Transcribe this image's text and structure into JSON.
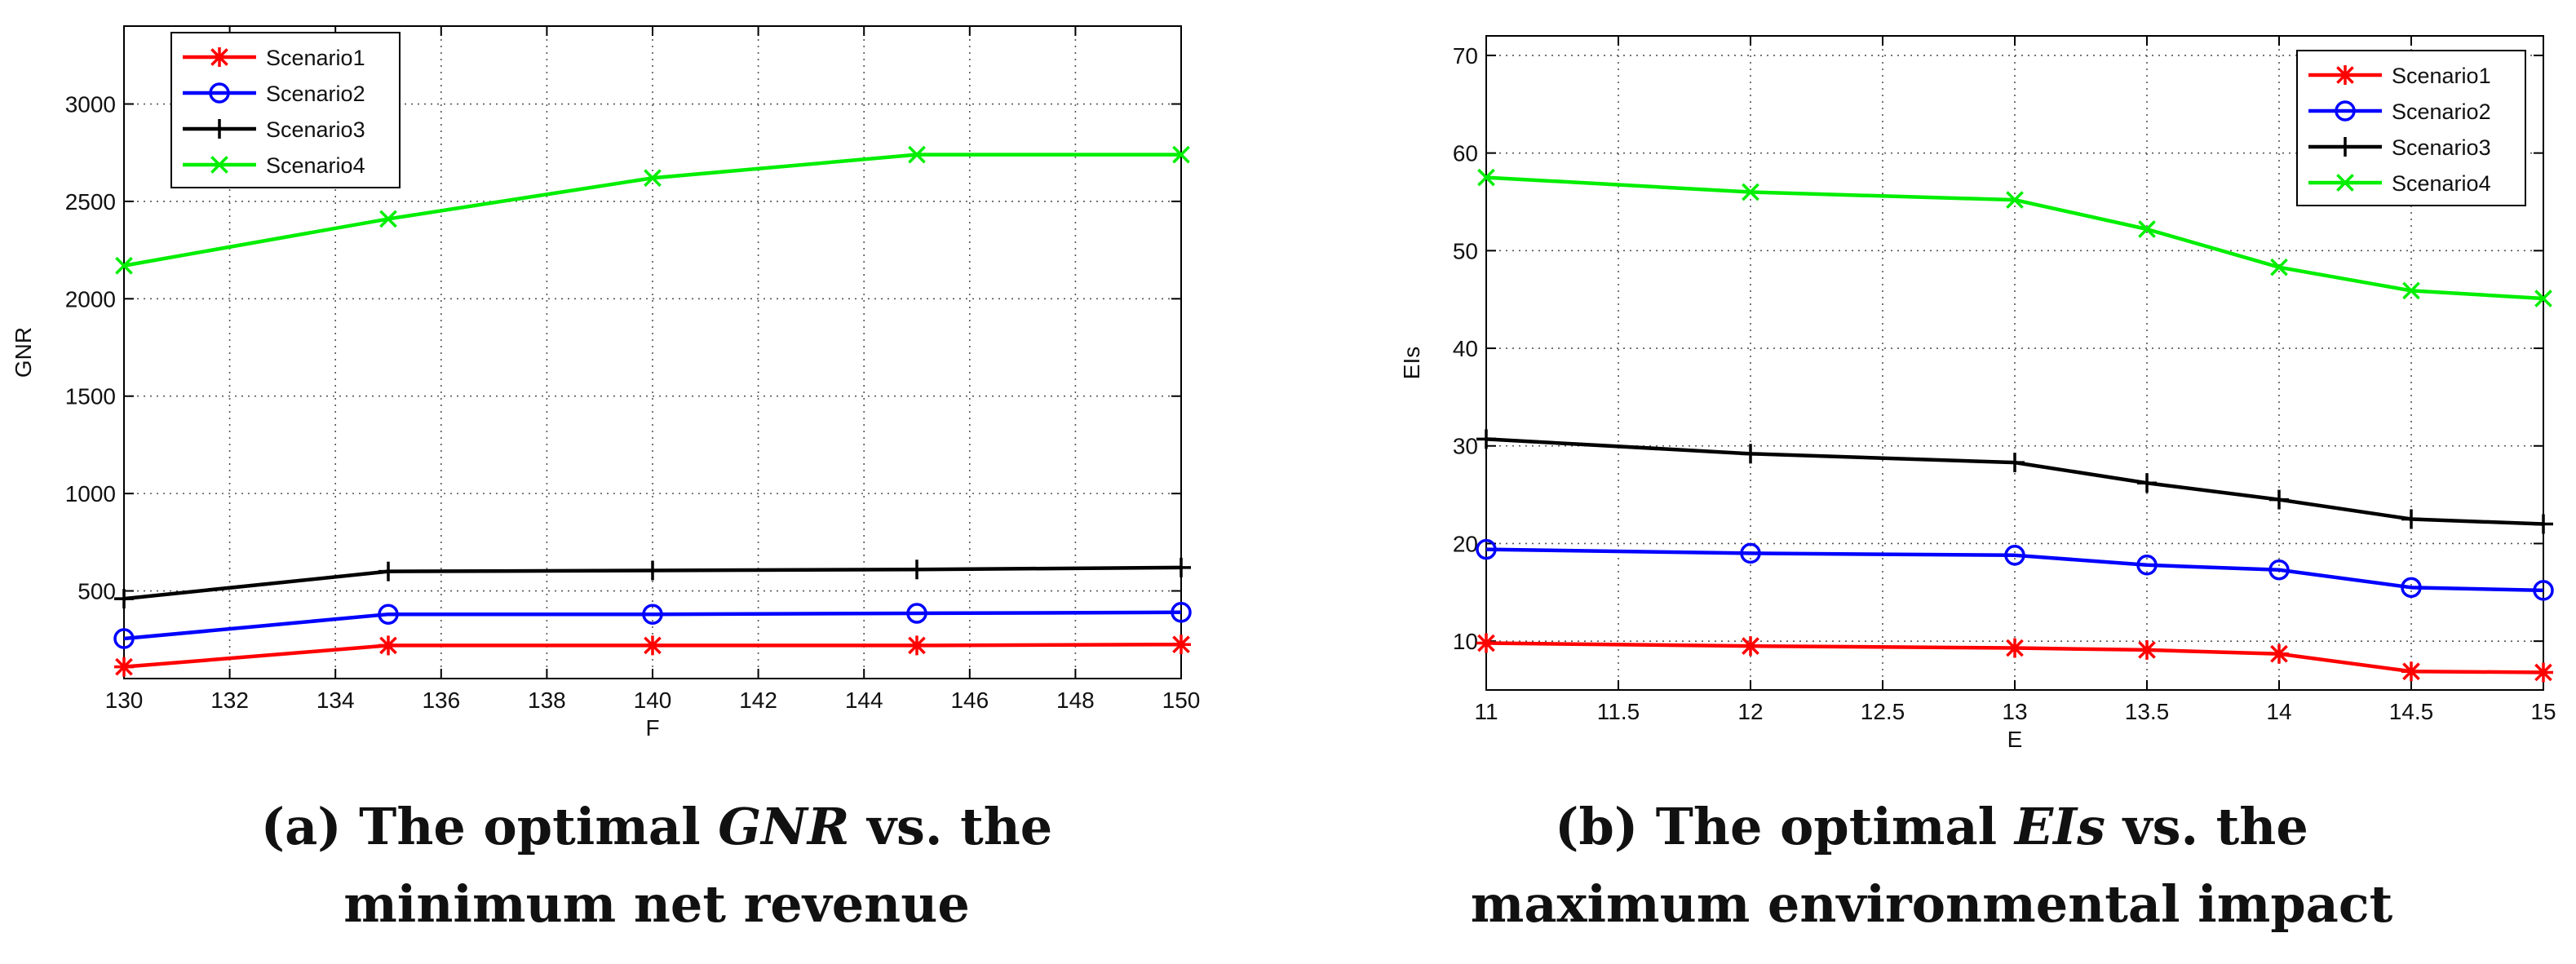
{
  "chart_data": [
    {
      "type": "line",
      "caption": {
        "prefix": "(a) The optimal ",
        "italic": "GNR",
        "suffix": " vs. the",
        "line2": "minimum net revenue"
      },
      "xlabel": "F",
      "ylabel": "GNR",
      "xlim": [
        130,
        150
      ],
      "ylim": [
        50,
        3400
      ],
      "xticks": [
        130,
        132,
        134,
        136,
        138,
        140,
        142,
        144,
        146,
        148,
        150
      ],
      "yticks": [
        500,
        1000,
        1500,
        2000,
        2500,
        3000
      ],
      "grid": true,
      "legend_position": "top-left",
      "x": [
        130,
        135,
        140,
        145,
        150
      ],
      "series": [
        {
          "name": "Scenario1",
          "color": "#ff0000",
          "marker": "asterisk",
          "values": [
            110,
            220,
            220,
            220,
            225
          ]
        },
        {
          "name": "Scenario2",
          "color": "#0000ff",
          "marker": "circle",
          "values": [
            255,
            380,
            380,
            385,
            390
          ]
        },
        {
          "name": "Scenario3",
          "color": "#000000",
          "marker": "plus",
          "values": [
            460,
            600,
            605,
            610,
            620
          ]
        },
        {
          "name": "Scenario4",
          "color": "#00ee00",
          "marker": "x",
          "values": [
            2170,
            2410,
            2620,
            2740,
            2740
          ]
        }
      ]
    },
    {
      "type": "line",
      "caption": {
        "prefix": "(b) The optimal ",
        "italic": "EIs",
        "suffix": " vs. the",
        "line2": "maximum environmental impact"
      },
      "xlabel": "E",
      "ylabel": "EIs",
      "xlim": [
        11,
        15
      ],
      "ylim": [
        5,
        72
      ],
      "xticks": [
        11,
        11.5,
        12,
        12.5,
        13,
        13.5,
        14,
        14.5,
        15
      ],
      "yticks": [
        10,
        20,
        30,
        40,
        50,
        60,
        70
      ],
      "grid": true,
      "legend_position": "top-right",
      "x": [
        11,
        12,
        13,
        13.5,
        14,
        14.5,
        15
      ],
      "series": [
        {
          "name": "Scenario1",
          "color": "#ff0000",
          "marker": "asterisk",
          "values": [
            9.8,
            9.5,
            9.3,
            9.1,
            8.7,
            6.9,
            6.8
          ]
        },
        {
          "name": "Scenario2",
          "color": "#0000ff",
          "marker": "circle",
          "values": [
            19.4,
            19.0,
            18.8,
            17.8,
            17.3,
            15.5,
            15.2
          ]
        },
        {
          "name": "Scenario3",
          "color": "#000000",
          "marker": "plus",
          "values": [
            30.7,
            29.2,
            28.3,
            26.2,
            24.5,
            22.5,
            22.0
          ]
        },
        {
          "name": "Scenario4",
          "color": "#00ee00",
          "marker": "x",
          "values": [
            57.5,
            56.0,
            55.2,
            52.2,
            48.3,
            45.9,
            45.1
          ]
        }
      ]
    }
  ]
}
